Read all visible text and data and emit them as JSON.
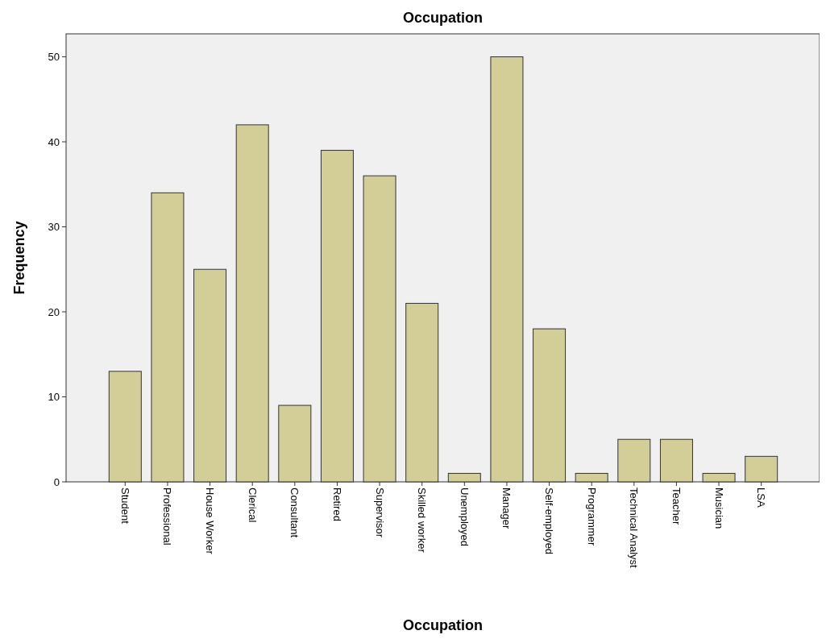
{
  "chart_data": {
    "type": "bar",
    "title": "Occupation",
    "xlabel": "Occupation",
    "ylabel": "Frequency",
    "categories": [
      "Student",
      "Professional",
      "House Worker",
      "Clerical",
      "Consultant",
      "Retired",
      "Supervisor",
      "Skilled worker",
      "Unemployed",
      "Manager",
      "Self-employed",
      "Programmer",
      "Technical Analyst",
      "Teacher",
      "Musician",
      "LSA"
    ],
    "values": [
      13,
      34,
      25,
      42,
      9,
      39,
      36,
      21,
      1,
      50,
      18,
      1,
      5,
      5,
      1,
      3
    ],
    "color": "#d3ce97",
    "ylim": [
      0,
      52.7
    ],
    "yticks": [
      0,
      10,
      20,
      30,
      40,
      50
    ],
    "grid": false
  }
}
